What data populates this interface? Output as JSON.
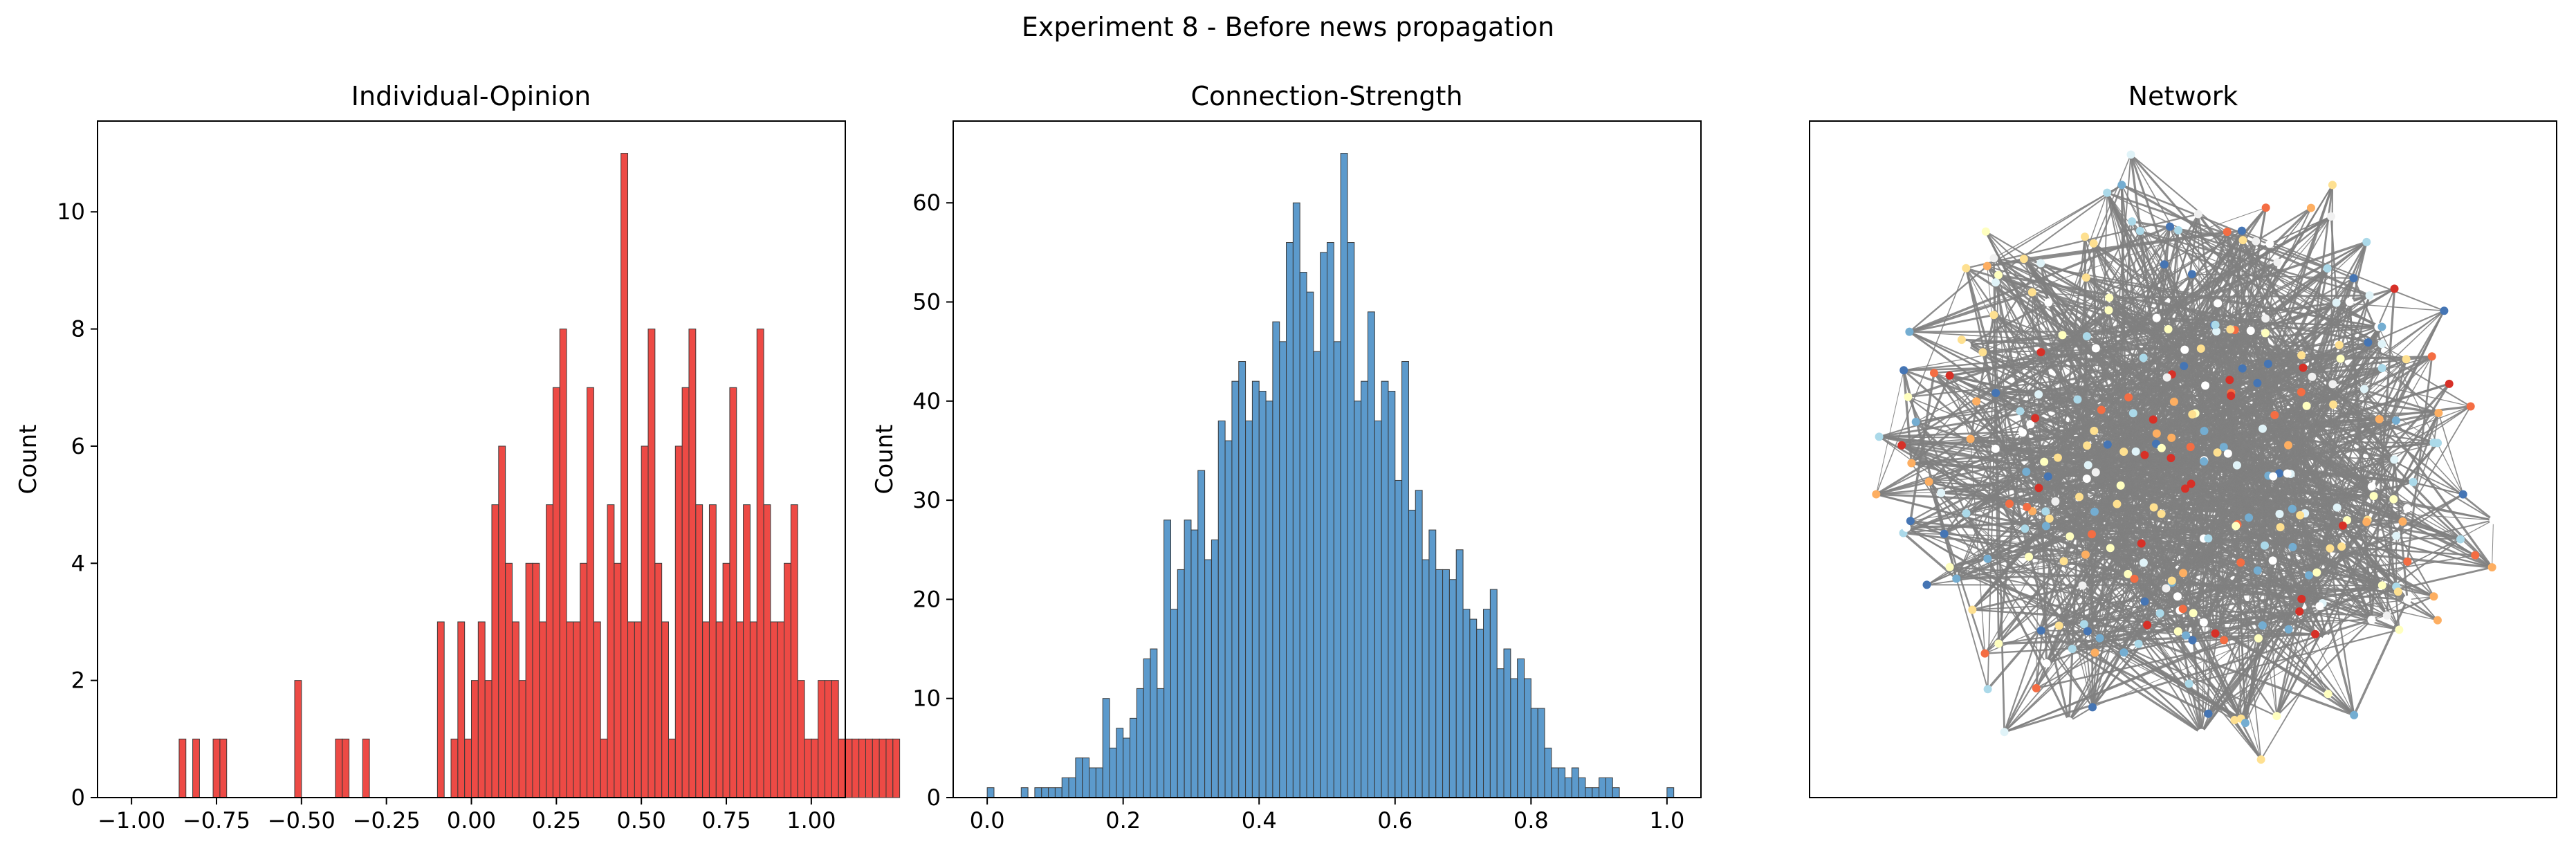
{
  "figure": {
    "suptitle": "Experiment 8 - Before news propagation"
  },
  "chart_data": [
    {
      "type": "bar",
      "title": "Individual-Opinion",
      "xlabel": "",
      "ylabel": "Count",
      "xlim": [
        -1.1,
        1.1
      ],
      "ylim": [
        0,
        11.55
      ],
      "xticks": [
        -1.0,
        -0.75,
        -0.5,
        -0.25,
        0.0,
        0.25,
        0.5,
        0.75,
        1.0
      ],
      "xtick_labels": [
        "−1.00",
        "−0.75",
        "−0.50",
        "−0.25",
        "0.00",
        "0.25",
        "0.50",
        "0.75",
        "1.00"
      ],
      "yticks": [
        0,
        2,
        4,
        6,
        8,
        10
      ],
      "ytick_labels": [
        "0",
        "2",
        "4",
        "6",
        "8",
        "10"
      ],
      "grid": false,
      "color": "#ea2a25",
      "bin_start": -0.86,
      "bin_width": 0.02,
      "values": [
        1,
        0,
        1,
        0,
        0,
        1,
        1,
        0,
        0,
        0,
        0,
        0,
        0,
        0,
        0,
        0,
        0,
        2,
        0,
        0,
        0,
        0,
        0,
        1,
        1,
        0,
        0,
        1,
        0,
        0,
        0,
        0,
        0,
        0,
        0,
        0,
        0,
        0,
        3,
        0,
        1,
        3,
        1,
        2,
        3,
        2,
        5,
        6,
        4,
        3,
        2,
        4,
        4,
        3,
        5,
        7,
        8,
        3,
        3,
        4,
        7,
        3,
        1,
        5,
        4,
        11,
        3,
        3,
        6,
        8,
        4,
        3,
        1,
        6,
        7,
        8,
        5,
        3,
        5,
        3,
        4,
        7,
        3,
        5,
        3,
        8,
        5,
        3,
        3,
        4,
        5,
        2,
        1,
        1,
        2,
        2,
        2,
        1,
        1,
        1,
        1,
        1,
        1,
        1,
        1,
        1
      ]
    },
    {
      "type": "bar",
      "title": "Connection-Strength",
      "xlabel": "",
      "ylabel": "Count",
      "xlim": [
        -0.05,
        1.05
      ],
      "ylim": [
        0,
        68.25
      ],
      "xticks": [
        0.0,
        0.2,
        0.4,
        0.6,
        0.8,
        1.0
      ],
      "xtick_labels": [
        "0.0",
        "0.2",
        "0.4",
        "0.6",
        "0.8",
        "1.0"
      ],
      "yticks": [
        0,
        10,
        20,
        30,
        40,
        50,
        60
      ],
      "ytick_labels": [
        "0",
        "10",
        "20",
        "30",
        "40",
        "50",
        "60"
      ],
      "grid": false,
      "color": "#3f88c3",
      "bin_start": 0.0,
      "bin_width": 0.01,
      "values": [
        1,
        0,
        0,
        0,
        0,
        1,
        0,
        1,
        1,
        1,
        1,
        2,
        2,
        4,
        4,
        3,
        3,
        10,
        5,
        7,
        6,
        8,
        11,
        14,
        15,
        11,
        28,
        19,
        23,
        28,
        27,
        33,
        24,
        26,
        38,
        36,
        42,
        44,
        38,
        42,
        41,
        40,
        48,
        46,
        56,
        60,
        53,
        51,
        45,
        55,
        56,
        46,
        65,
        56,
        40,
        42,
        49,
        38,
        42,
        41,
        32,
        44,
        29,
        31,
        24,
        27,
        23,
        23,
        22,
        25,
        19,
        18,
        17,
        19,
        21,
        13,
        15,
        12,
        14,
        12,
        9,
        9,
        5,
        3,
        3,
        2,
        3,
        2,
        1,
        1,
        2,
        2,
        1,
        0,
        0,
        0,
        0,
        0,
        0,
        0,
        1
      ]
    },
    {
      "type": "network",
      "title": "Network",
      "node_colors": [
        "#ffffbf",
        "#abd9e9",
        "#fdae61",
        "#f46d43",
        "#d73027",
        "#e0f3f8",
        "#74add1",
        "#fee090",
        "#4575b4",
        "#ffffff",
        "#f0f0f0"
      ],
      "edge_color": "#808080"
    }
  ]
}
